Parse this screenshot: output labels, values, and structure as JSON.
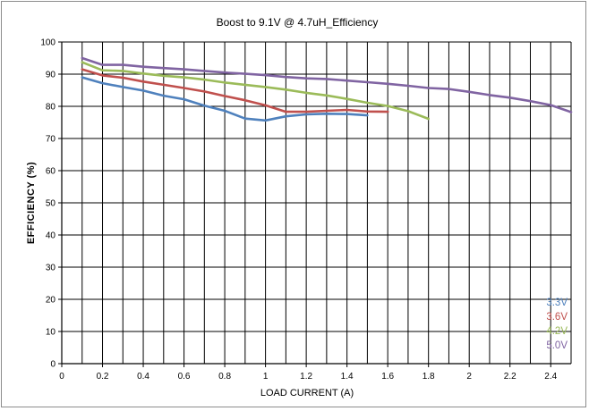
{
  "chart_data": {
    "type": "line",
    "title": "Boost to 9.1V @ 4.7uH_Efficiency",
    "xlabel": "LOAD CURRENT (A)",
    "ylabel": "EFFICIENCY (%)",
    "xlim": [
      0,
      2.5
    ],
    "ylim": [
      0,
      100
    ],
    "x_ticks": [
      0,
      0.2,
      0.4,
      0.6,
      0.8,
      1,
      1.2,
      1.4,
      1.6,
      1.8,
      2,
      2.2,
      2.4
    ],
    "x_tick_labels": [
      "0",
      "0.2",
      "0.4",
      "0.6",
      "0.8",
      "1",
      "1.2",
      "1.4",
      "1.6",
      "1.8",
      "2",
      "2.2",
      "2.4"
    ],
    "y_ticks": [
      0,
      10,
      20,
      30,
      40,
      50,
      60,
      70,
      80,
      90,
      100
    ],
    "y_tick_labels": [
      "0",
      "10",
      "20",
      "30",
      "40",
      "50",
      "60",
      "70",
      "80",
      "90",
      "100"
    ],
    "grid": true,
    "legend_position": "bottom-right",
    "series": [
      {
        "name": "3.3V",
        "color": "#4f81bd",
        "x": [
          0.1,
          0.2,
          0.3,
          0.4,
          0.5,
          0.6,
          0.7,
          0.8,
          0.9,
          1.0,
          1.1,
          1.2,
          1.3,
          1.4,
          1.5
        ],
        "y": [
          89,
          87.2,
          86,
          84.9,
          83.3,
          82.2,
          80.2,
          78.6,
          76.2,
          75.6,
          76.9,
          77.5,
          77.7,
          77.6,
          77.2
        ]
      },
      {
        "name": "3.6V",
        "color": "#c0504d",
        "x": [
          0.1,
          0.2,
          0.3,
          0.4,
          0.5,
          0.6,
          0.7,
          0.8,
          0.9,
          1.0,
          1.1,
          1.2,
          1.3,
          1.4,
          1.5,
          1.6
        ],
        "y": [
          91.5,
          89.6,
          88.9,
          87.7,
          86.7,
          85.7,
          84.6,
          83.2,
          81.9,
          80.3,
          78.3,
          78.3,
          78.6,
          78.9,
          78.4,
          78.3
        ]
      },
      {
        "name": "4.2V",
        "color": "#9bbb59",
        "x": [
          0.1,
          0.2,
          0.3,
          0.4,
          0.5,
          0.6,
          0.7,
          0.8,
          0.9,
          1.0,
          1.1,
          1.2,
          1.3,
          1.4,
          1.5,
          1.6,
          1.7,
          1.8
        ],
        "y": [
          93.7,
          91.2,
          91,
          90.2,
          89.5,
          89,
          88.3,
          87.4,
          86.7,
          86,
          85.2,
          84.2,
          83.4,
          82.3,
          81.1,
          80.1,
          78.5,
          76.1
        ]
      },
      {
        "name": "5.0V",
        "color": "#8064a2",
        "x": [
          0.1,
          0.2,
          0.3,
          0.4,
          0.5,
          0.6,
          0.7,
          0.8,
          0.9,
          1.0,
          1.1,
          1.2,
          1.3,
          1.4,
          1.5,
          1.6,
          1.7,
          1.8,
          1.9,
          2.0,
          2.1,
          2.2,
          2.3,
          2.4,
          2.5
        ],
        "y": [
          95,
          92.9,
          92.9,
          92.3,
          91.9,
          91.5,
          91,
          90.5,
          90.1,
          89.7,
          89.1,
          88.7,
          88.5,
          88,
          87.5,
          87,
          86.4,
          85.7,
          85.4,
          84.5,
          83.5,
          82.7,
          81.6,
          80.4,
          78.2
        ]
      }
    ]
  }
}
